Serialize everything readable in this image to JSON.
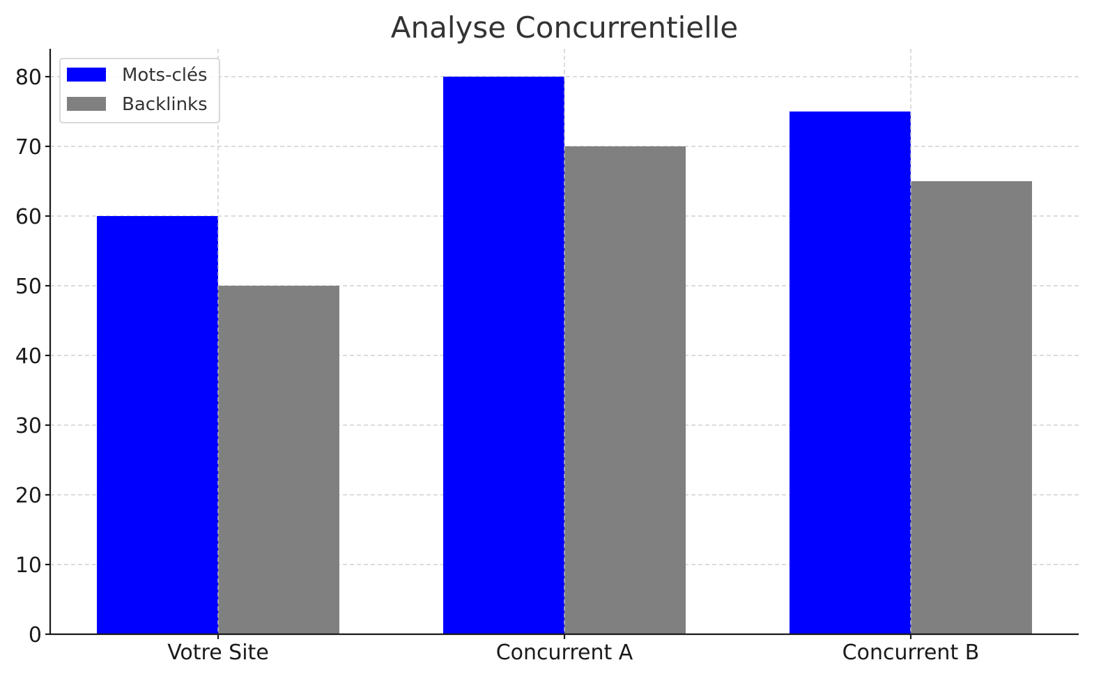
{
  "chart_data": {
    "type": "bar",
    "title": "Analyse Concurrentielle",
    "xlabel": "",
    "ylabel": "",
    "categories": [
      "Votre Site",
      "Concurrent A",
      "Concurrent B"
    ],
    "series": [
      {
        "name": "Mots-clés",
        "values": [
          60,
          80,
          75
        ],
        "color": "#0000ff"
      },
      {
        "name": "Backlinks",
        "values": [
          50,
          70,
          65
        ],
        "color": "#808080"
      }
    ],
    "ylim": [
      0,
      84
    ],
    "yticks": [
      0,
      10,
      20,
      30,
      40,
      50,
      60,
      70,
      80
    ],
    "grid": true,
    "legend_position": "top-left"
  }
}
